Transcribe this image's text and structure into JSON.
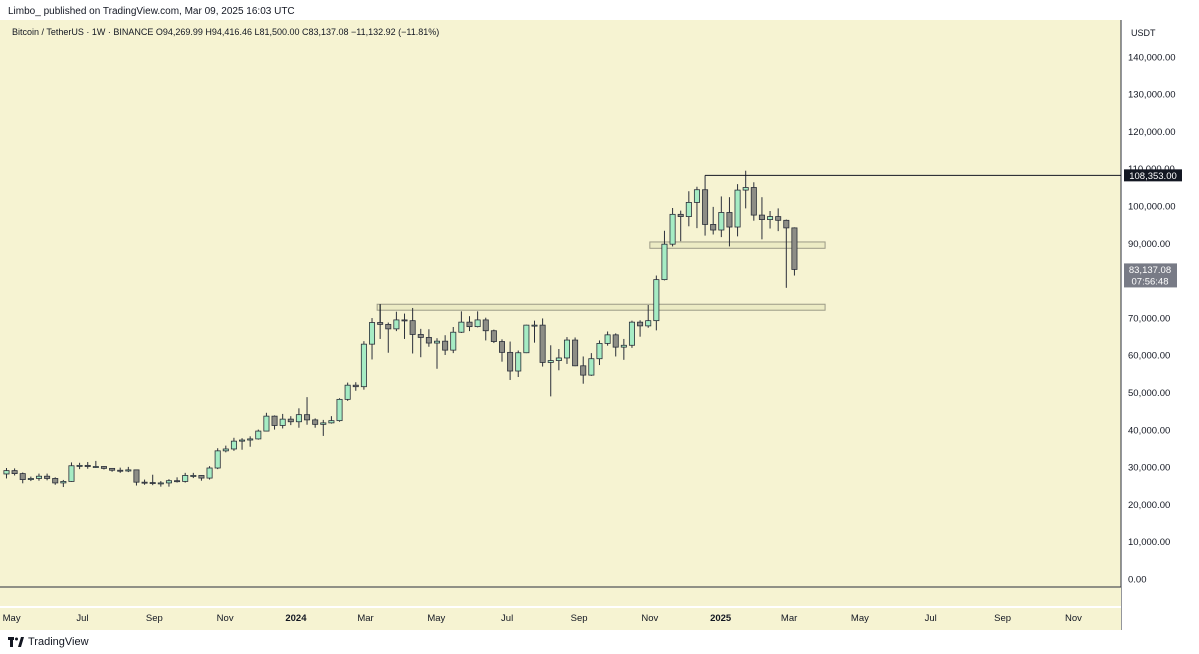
{
  "header": {
    "published": "Limbo_ published on TradingView.com, Mar 09, 2025 16:03 UTC"
  },
  "footer": {
    "logo_text": "TradingView",
    "logo_icon": "tradingview-logo-icon"
  },
  "colors": {
    "background": "#f6f3d2",
    "up_fill": "#a6ecc4",
    "down_fill": "#8d8d86",
    "wick": "#2a2e39",
    "price_line": "#131722",
    "zone_fill": "#ecebc4",
    "zone_stroke": "#9b9a86"
  },
  "chart_data": {
    "type": "candlestick",
    "symbol_line": "Bitcoin / TetherUS · 1W · BINANCE  O94,269.99  H94,416.46  L81,500.00  C83,137.08  −11,132.92 (−11.81%)",
    "currency_label": "USDT",
    "interval": "1W",
    "ylim": [
      -2000,
      150000
    ],
    "y_ticks": [
      0,
      10000,
      20000,
      30000,
      40000,
      50000,
      60000,
      70000,
      80000,
      90000,
      100000,
      110000,
      120000,
      130000,
      140000
    ],
    "y_tick_labels": [
      "0.00",
      "10,000.00",
      "20,000.00",
      "30,000.00",
      "40,000.00",
      "50,000.00",
      "60,000.00",
      "70,000.00",
      "80,000.00",
      "90,000.00",
      "100,000.00",
      "110,000.00",
      "120,000.00",
      "130,000.00",
      "140,000.00"
    ],
    "xlim": [
      "2023-04-21",
      "2025-12-12"
    ],
    "x_ticks": [
      {
        "date": "2023-05-01",
        "label": "May",
        "bold": false
      },
      {
        "date": "2023-07-01",
        "label": "Jul",
        "bold": false
      },
      {
        "date": "2023-09-01",
        "label": "Sep",
        "bold": false
      },
      {
        "date": "2023-11-01",
        "label": "Nov",
        "bold": false
      },
      {
        "date": "2024-01-01",
        "label": "2024",
        "bold": true
      },
      {
        "date": "2024-03-01",
        "label": "Mar",
        "bold": false
      },
      {
        "date": "2024-05-01",
        "label": "May",
        "bold": false
      },
      {
        "date": "2024-07-01",
        "label": "Jul",
        "bold": false
      },
      {
        "date": "2024-09-01",
        "label": "Sep",
        "bold": false
      },
      {
        "date": "2024-11-01",
        "label": "Nov",
        "bold": false
      },
      {
        "date": "2025-01-01",
        "label": "2025",
        "bold": true
      },
      {
        "date": "2025-03-01",
        "label": "Mar",
        "bold": false
      },
      {
        "date": "2025-05-01",
        "label": "May",
        "bold": false
      },
      {
        "date": "2025-07-01",
        "label": "Jul",
        "bold": false
      },
      {
        "date": "2025-09-01",
        "label": "Sep",
        "bold": false
      },
      {
        "date": "2025-11-01",
        "label": "Nov",
        "bold": false
      }
    ],
    "candles": [
      {
        "date": "2023-04-24",
        "o": 28300,
        "h": 29900,
        "l": 27100,
        "c": 29200
      },
      {
        "date": "2023-05-01",
        "o": 29200,
        "h": 29800,
        "l": 27900,
        "c": 28400
      },
      {
        "date": "2023-05-08",
        "o": 28400,
        "h": 28700,
        "l": 25800,
        "c": 26800
      },
      {
        "date": "2023-05-15",
        "o": 26800,
        "h": 27600,
        "l": 26400,
        "c": 27100
      },
      {
        "date": "2023-05-22",
        "o": 27100,
        "h": 28400,
        "l": 26500,
        "c": 27700
      },
      {
        "date": "2023-05-29",
        "o": 27700,
        "h": 28400,
        "l": 26600,
        "c": 27100
      },
      {
        "date": "2023-06-05",
        "o": 27100,
        "h": 27400,
        "l": 25400,
        "c": 25900
      },
      {
        "date": "2023-06-12",
        "o": 25900,
        "h": 26700,
        "l": 24800,
        "c": 26300
      },
      {
        "date": "2023-06-19",
        "o": 26300,
        "h": 31400,
        "l": 26200,
        "c": 30500
      },
      {
        "date": "2023-06-26",
        "o": 30500,
        "h": 31300,
        "l": 29600,
        "c": 30600
      },
      {
        "date": "2023-07-03",
        "o": 30600,
        "h": 31500,
        "l": 29700,
        "c": 30300
      },
      {
        "date": "2023-07-10",
        "o": 30300,
        "h": 31800,
        "l": 29900,
        "c": 30300
      },
      {
        "date": "2023-07-17",
        "o": 30300,
        "h": 30400,
        "l": 29500,
        "c": 29800
      },
      {
        "date": "2023-07-24",
        "o": 29800,
        "h": 29900,
        "l": 28900,
        "c": 29300
      },
      {
        "date": "2023-07-31",
        "o": 29300,
        "h": 30000,
        "l": 28600,
        "c": 29100
      },
      {
        "date": "2023-08-07",
        "o": 29100,
        "h": 30200,
        "l": 28800,
        "c": 29400
      },
      {
        "date": "2023-08-14",
        "o": 29400,
        "h": 29500,
        "l": 25200,
        "c": 26100
      },
      {
        "date": "2023-08-21",
        "o": 26100,
        "h": 26800,
        "l": 25400,
        "c": 26000
      },
      {
        "date": "2023-08-28",
        "o": 26000,
        "h": 28100,
        "l": 25300,
        "c": 25800
      },
      {
        "date": "2023-09-04",
        "o": 25800,
        "h": 26400,
        "l": 24900,
        "c": 25900
      },
      {
        "date": "2023-09-11",
        "o": 25900,
        "h": 26900,
        "l": 24900,
        "c": 26500
      },
      {
        "date": "2023-09-18",
        "o": 26500,
        "h": 27400,
        "l": 26000,
        "c": 26300
      },
      {
        "date": "2023-09-25",
        "o": 26300,
        "h": 28600,
        "l": 26000,
        "c": 27900
      },
      {
        "date": "2023-10-02",
        "o": 27900,
        "h": 28600,
        "l": 27200,
        "c": 27900
      },
      {
        "date": "2023-10-09",
        "o": 27900,
        "h": 28000,
        "l": 26500,
        "c": 27200
      },
      {
        "date": "2023-10-16",
        "o": 27200,
        "h": 30400,
        "l": 26800,
        "c": 29900
      },
      {
        "date": "2023-10-23",
        "o": 29900,
        "h": 35200,
        "l": 29600,
        "c": 34500
      },
      {
        "date": "2023-10-30",
        "o": 34500,
        "h": 35900,
        "l": 34100,
        "c": 35000
      },
      {
        "date": "2023-11-06",
        "o": 35000,
        "h": 38000,
        "l": 34500,
        "c": 37100
      },
      {
        "date": "2023-11-13",
        "o": 37100,
        "h": 37900,
        "l": 34800,
        "c": 37400
      },
      {
        "date": "2023-11-20",
        "o": 37400,
        "h": 38400,
        "l": 35600,
        "c": 37700
      },
      {
        "date": "2023-11-27",
        "o": 37700,
        "h": 40200,
        "l": 37500,
        "c": 39800
      },
      {
        "date": "2023-12-04",
        "o": 39800,
        "h": 44700,
        "l": 39700,
        "c": 43800
      },
      {
        "date": "2023-12-11",
        "o": 43800,
        "h": 44000,
        "l": 40200,
        "c": 41300
      },
      {
        "date": "2023-12-18",
        "o": 41300,
        "h": 44400,
        "l": 40500,
        "c": 43000
      },
      {
        "date": "2023-12-25",
        "o": 43000,
        "h": 43800,
        "l": 41400,
        "c": 42300
      },
      {
        "date": "2024-01-01",
        "o": 42300,
        "h": 45900,
        "l": 40700,
        "c": 44200
      },
      {
        "date": "2024-01-08",
        "o": 44200,
        "h": 48900,
        "l": 41500,
        "c": 42800
      },
      {
        "date": "2024-01-15",
        "o": 42800,
        "h": 43200,
        "l": 40700,
        "c": 41600
      },
      {
        "date": "2024-01-22",
        "o": 41600,
        "h": 42800,
        "l": 38500,
        "c": 42000
      },
      {
        "date": "2024-01-29",
        "o": 42000,
        "h": 43800,
        "l": 41800,
        "c": 42600
      },
      {
        "date": "2024-02-05",
        "o": 42600,
        "h": 48600,
        "l": 42300,
        "c": 48300
      },
      {
        "date": "2024-02-12",
        "o": 48300,
        "h": 52800,
        "l": 47900,
        "c": 52100
      },
      {
        "date": "2024-02-19",
        "o": 52100,
        "h": 52900,
        "l": 50600,
        "c": 51700
      },
      {
        "date": "2024-02-26",
        "o": 51700,
        "h": 63900,
        "l": 50900,
        "c": 63100
      },
      {
        "date": "2024-03-04",
        "o": 63100,
        "h": 70100,
        "l": 59000,
        "c": 68900
      },
      {
        "date": "2024-03-11",
        "o": 68900,
        "h": 73800,
        "l": 64500,
        "c": 68400
      },
      {
        "date": "2024-03-18",
        "o": 68400,
        "h": 68900,
        "l": 60800,
        "c": 67200
      },
      {
        "date": "2024-03-25",
        "o": 67200,
        "h": 71800,
        "l": 66600,
        "c": 69600
      },
      {
        "date": "2024-04-01",
        "o": 69600,
        "h": 71300,
        "l": 64500,
        "c": 69400
      },
      {
        "date": "2024-04-08",
        "o": 69400,
        "h": 72800,
        "l": 60600,
        "c": 65700
      },
      {
        "date": "2024-04-15",
        "o": 65700,
        "h": 67200,
        "l": 59600,
        "c": 64900
      },
      {
        "date": "2024-04-22",
        "o": 64900,
        "h": 67100,
        "l": 62400,
        "c": 63400
      },
      {
        "date": "2024-04-29",
        "o": 63400,
        "h": 64700,
        "l": 56500,
        "c": 63900
      },
      {
        "date": "2024-05-06",
        "o": 63900,
        "h": 65500,
        "l": 60200,
        "c": 61500
      },
      {
        "date": "2024-05-13",
        "o": 61500,
        "h": 67700,
        "l": 60700,
        "c": 66300
      },
      {
        "date": "2024-05-20",
        "o": 66300,
        "h": 71900,
        "l": 66100,
        "c": 69000
      },
      {
        "date": "2024-05-27",
        "o": 69000,
        "h": 70600,
        "l": 66600,
        "c": 67800
      },
      {
        "date": "2024-06-03",
        "o": 67800,
        "h": 71900,
        "l": 67600,
        "c": 69600
      },
      {
        "date": "2024-06-10",
        "o": 69600,
        "h": 70200,
        "l": 64100,
        "c": 66700
      },
      {
        "date": "2024-06-17",
        "o": 66700,
        "h": 67000,
        "l": 63400,
        "c": 63800
      },
      {
        "date": "2024-06-24",
        "o": 63800,
        "h": 64400,
        "l": 58400,
        "c": 60900
      },
      {
        "date": "2024-07-01",
        "o": 60900,
        "h": 63800,
        "l": 53500,
        "c": 55900
      },
      {
        "date": "2024-07-08",
        "o": 55900,
        "h": 61400,
        "l": 54300,
        "c": 60800
      },
      {
        "date": "2024-07-15",
        "o": 60800,
        "h": 68300,
        "l": 60700,
        "c": 68200
      },
      {
        "date": "2024-07-22",
        "o": 68200,
        "h": 69400,
        "l": 63500,
        "c": 68200
      },
      {
        "date": "2024-07-29",
        "o": 68200,
        "h": 70000,
        "l": 57100,
        "c": 58200
      },
      {
        "date": "2024-08-05",
        "o": 58200,
        "h": 62800,
        "l": 49100,
        "c": 58700
      },
      {
        "date": "2024-08-12",
        "o": 58700,
        "h": 61800,
        "l": 56100,
        "c": 59400
      },
      {
        "date": "2024-08-19",
        "o": 59400,
        "h": 65000,
        "l": 57800,
        "c": 64200
      },
      {
        "date": "2024-08-26",
        "o": 64200,
        "h": 64900,
        "l": 57200,
        "c": 57300
      },
      {
        "date": "2024-09-02",
        "o": 57300,
        "h": 59800,
        "l": 52500,
        "c": 54800
      },
      {
        "date": "2024-09-09",
        "o": 54800,
        "h": 60700,
        "l": 54600,
        "c": 59200
      },
      {
        "date": "2024-09-16",
        "o": 59200,
        "h": 64100,
        "l": 57500,
        "c": 63300
      },
      {
        "date": "2024-09-23",
        "o": 63300,
        "h": 66500,
        "l": 62700,
        "c": 65600
      },
      {
        "date": "2024-09-30",
        "o": 65600,
        "h": 66000,
        "l": 59800,
        "c": 62300
      },
      {
        "date": "2024-10-07",
        "o": 62300,
        "h": 64500,
        "l": 58900,
        "c": 62800
      },
      {
        "date": "2024-10-14",
        "o": 62800,
        "h": 69400,
        "l": 62100,
        "c": 69000
      },
      {
        "date": "2024-10-21",
        "o": 69000,
        "h": 69500,
        "l": 65100,
        "c": 68000
      },
      {
        "date": "2024-10-28",
        "o": 68000,
        "h": 73600,
        "l": 67500,
        "c": 69400
      },
      {
        "date": "2024-11-04",
        "o": 69400,
        "h": 81500,
        "l": 66800,
        "c": 80400
      },
      {
        "date": "2024-11-11",
        "o": 80400,
        "h": 93500,
        "l": 80200,
        "c": 89900
      },
      {
        "date": "2024-11-18",
        "o": 89900,
        "h": 99600,
        "l": 89300,
        "c": 97900
      },
      {
        "date": "2024-11-25",
        "o": 97900,
        "h": 98900,
        "l": 90700,
        "c": 97300
      },
      {
        "date": "2024-12-02",
        "o": 97300,
        "h": 104100,
        "l": 94700,
        "c": 101100
      },
      {
        "date": "2024-12-09",
        "o": 101100,
        "h": 105300,
        "l": 94200,
        "c": 104500
      },
      {
        "date": "2024-12-16",
        "o": 104500,
        "h": 108353,
        "l": 92200,
        "c": 95200
      },
      {
        "date": "2024-12-23",
        "o": 95200,
        "h": 99900,
        "l": 92500,
        "c": 93700
      },
      {
        "date": "2024-12-30",
        "o": 93700,
        "h": 102700,
        "l": 91800,
        "c": 98400
      },
      {
        "date": "2025-01-06",
        "o": 98400,
        "h": 102500,
        "l": 89300,
        "c": 94500
      },
      {
        "date": "2025-01-13",
        "o": 94500,
        "h": 106000,
        "l": 92000,
        "c": 104400
      },
      {
        "date": "2025-01-20",
        "o": 104400,
        "h": 109600,
        "l": 99500,
        "c": 105100
      },
      {
        "date": "2025-01-27",
        "o": 105100,
        "h": 106500,
        "l": 96200,
        "c": 97700
      },
      {
        "date": "2025-02-03",
        "o": 97700,
        "h": 102500,
        "l": 91200,
        "c": 96500
      },
      {
        "date": "2025-02-10",
        "o": 96500,
        "h": 98800,
        "l": 94100,
        "c": 97300
      },
      {
        "date": "2025-02-17",
        "o": 97300,
        "h": 99500,
        "l": 93400,
        "c": 96300
      },
      {
        "date": "2025-02-24",
        "o": 96300,
        "h": 96500,
        "l": 78200,
        "c": 94269.99
      },
      {
        "date": "2025-03-03",
        "o": 94269.99,
        "h": 94416.46,
        "l": 81500,
        "c": 83137.08
      }
    ],
    "annotations": {
      "ath_line": {
        "from": "2024-12-16",
        "to": "2025-12-12",
        "y": 108353,
        "label": "108,353.00"
      },
      "last_price": {
        "y": 83137.08,
        "label": "83,137.08",
        "countdown": "07:56:48"
      },
      "zones": [
        {
          "from": "2024-11-01",
          "to": "2025-04-01",
          "y0": 88800,
          "y1": 90500
        },
        {
          "from": "2024-03-11",
          "to": "2025-04-01",
          "y0": 72200,
          "y1": 73800
        }
      ],
      "marker_line": {
        "x": "2024-03-11",
        "y0": 73800,
        "y1": 69000
      }
    }
  }
}
